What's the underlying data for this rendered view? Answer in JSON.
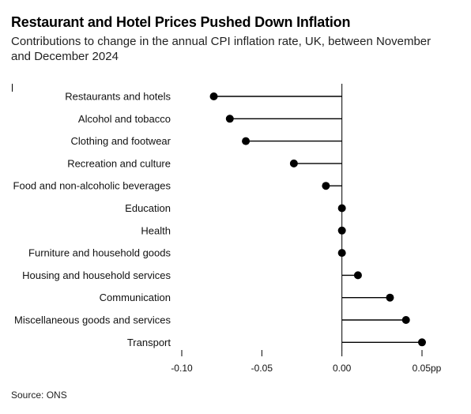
{
  "title": "Restaurant and Hotel Prices Pushed Down Inflation",
  "subtitle": "Contributions to change in the annual CPI inflation rate, UK, between November and December 2024",
  "source": "Source: ONS",
  "chart_data": {
    "type": "lollipop",
    "categories": [
      "Restaurants and hotels",
      "Alcohol and tobacco",
      "Clothing and footwear",
      "Recreation and culture",
      "Food and non-alcoholic beverages",
      "Education",
      "Health",
      "Furniture and household goods",
      "Housing and household services",
      "Communication",
      "Miscellaneous goods and services",
      "Transport"
    ],
    "values": [
      -0.08,
      -0.07,
      -0.06,
      -0.03,
      -0.01,
      0.0,
      0.0,
      0.0,
      0.01,
      0.03,
      0.04,
      0.05
    ],
    "xlim": [
      -0.1,
      0.05
    ],
    "xticks": [
      -0.1,
      -0.05,
      0.0,
      0.05
    ],
    "xtick_labels": [
      "-0.10",
      "-0.05",
      "0.00",
      "0.05pp"
    ],
    "colors": {
      "marker": "#000000",
      "line": "#000000",
      "axis": "#000000"
    }
  }
}
